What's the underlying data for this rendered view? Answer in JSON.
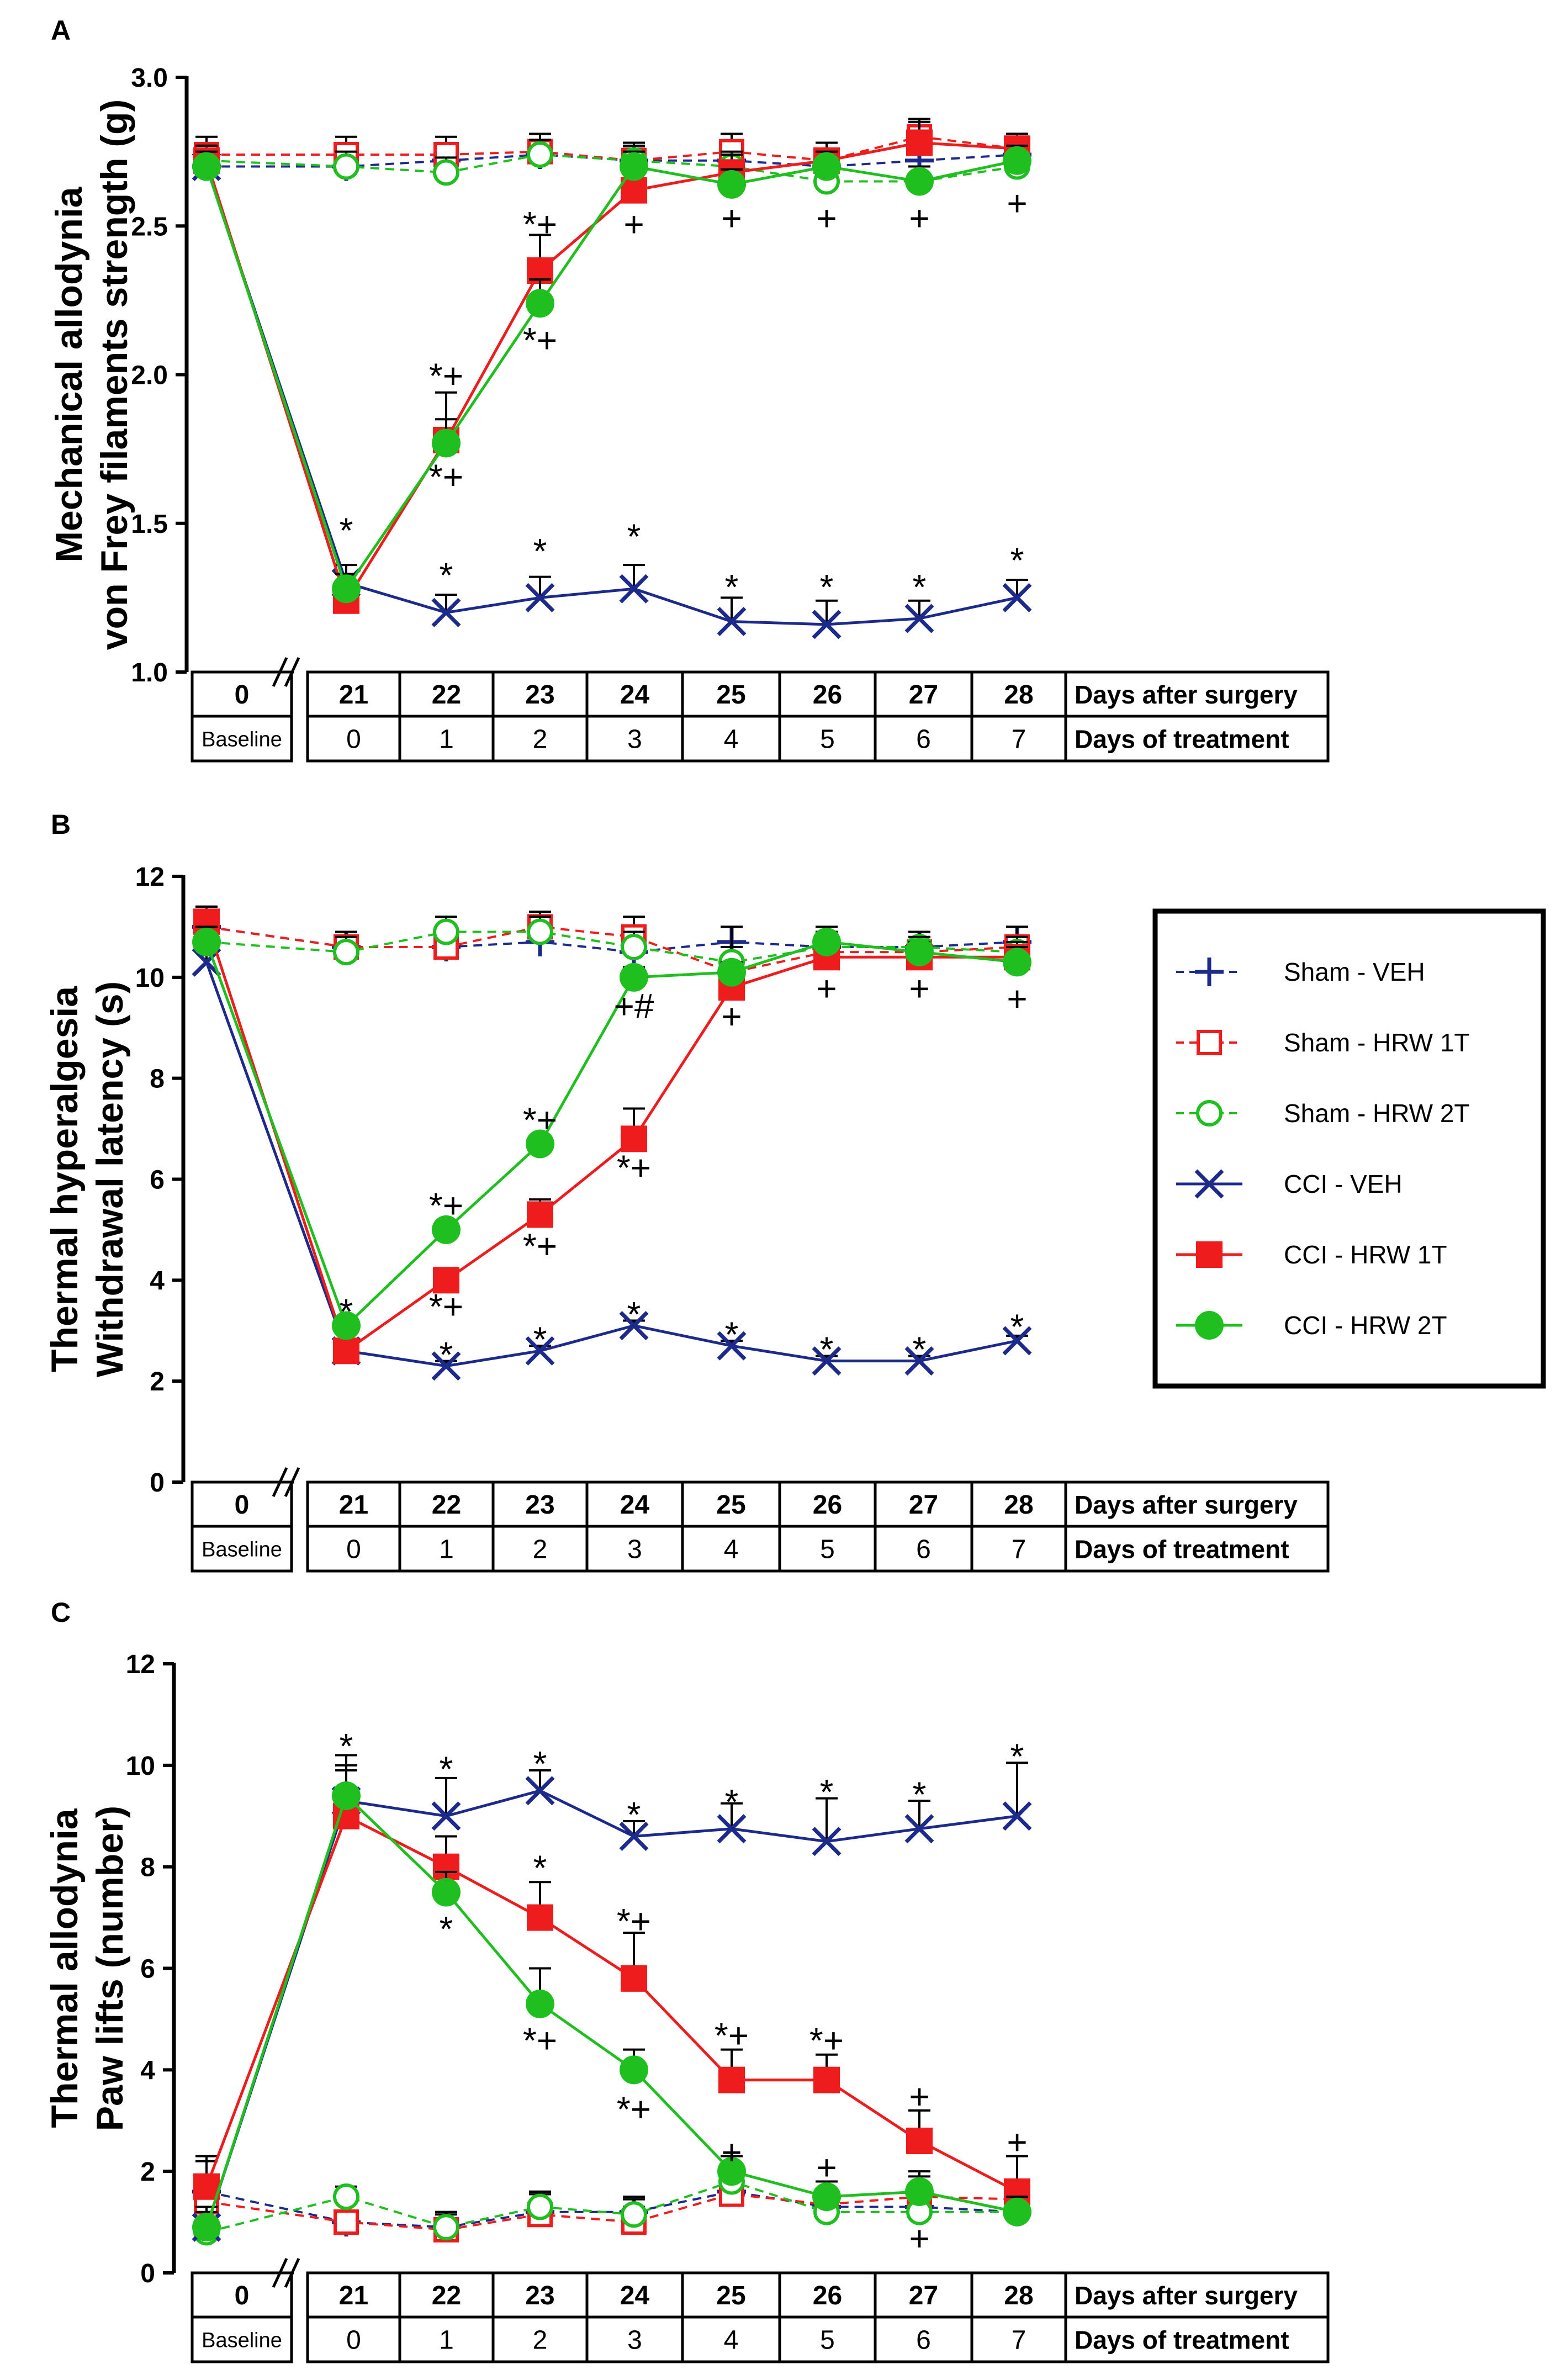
{
  "figure": {
    "panels": [
      "A",
      "B",
      "C"
    ]
  },
  "legend": [
    {
      "label": "Sham - VEH",
      "color": "#1c2a8c",
      "marker": "plus",
      "dashed": true
    },
    {
      "label": "Sham - HRW 1T",
      "color": "#ee1c1c",
      "marker": "open-square",
      "dashed": true
    },
    {
      "label": "Sham - HRW 2T",
      "color": "#1fbf1f",
      "marker": "open-circle",
      "dashed": true
    },
    {
      "label": "CCI - VEH",
      "color": "#1c2a8c",
      "marker": "x",
      "dashed": false
    },
    {
      "label": "CCI - HRW 1T",
      "color": "#ee1c1c",
      "marker": "filled-square",
      "dashed": false
    },
    {
      "label": "CCI - HRW 2T",
      "color": "#1fbf1f",
      "marker": "filled-circle",
      "dashed": false
    }
  ],
  "chart_data": [
    {
      "type": "line",
      "panel_letter": "A",
      "ylabel_line1": "Mechanical allodynia",
      "ylabel_line2": "von Frey filaments strength (g)",
      "ylim": [
        1.0,
        3.0
      ],
      "yticks": [
        "1.0",
        "1.5",
        "2.0",
        "2.5",
        "3.0"
      ],
      "days_after_surgery": [
        "0",
        "21",
        "22",
        "23",
        "24",
        "25",
        "26",
        "27",
        "28"
      ],
      "days_of_treatment": [
        "Baseline",
        "0",
        "1",
        "2",
        "3",
        "4",
        "5",
        "6",
        "7"
      ],
      "row_label_surgery": "Days after surgery",
      "row_label_treatment": "Days of treatment",
      "series": [
        {
          "name": "Sham - VEH",
          "values": [
            2.7,
            2.7,
            2.72,
            2.74,
            2.72,
            2.72,
            2.7,
            2.72,
            2.74
          ],
          "err": [
            0.05,
            0.03,
            0.04,
            0.03,
            0.04,
            0.04,
            0.04,
            0.04,
            0.04
          ]
        },
        {
          "name": "Sham - HRW 1T",
          "values": [
            2.74,
            2.74,
            2.74,
            2.75,
            2.72,
            2.75,
            2.72,
            2.8,
            2.76
          ],
          "err": [
            0.06,
            0.06,
            0.06,
            0.06,
            0.06,
            0.06,
            0.06,
            0.06,
            0.05
          ]
        },
        {
          "name": "Sham - HRW 2T",
          "values": [
            2.72,
            2.7,
            2.68,
            2.74,
            2.72,
            2.7,
            2.65,
            2.65,
            2.7
          ],
          "err": [
            0.05,
            0.05,
            0.05,
            0.05,
            0.05,
            0.05,
            0.05,
            0.05,
            0.05
          ]
        },
        {
          "name": "CCI - VEH",
          "values": [
            2.7,
            1.3,
            1.2,
            1.25,
            1.28,
            1.17,
            1.16,
            1.18,
            1.25
          ],
          "err": [
            0.05,
            0.06,
            0.06,
            0.07,
            0.08,
            0.08,
            0.08,
            0.06,
            0.06
          ]
        },
        {
          "name": "CCI - HRW 1T",
          "values": [
            2.72,
            1.24,
            1.78,
            2.35,
            2.62,
            2.68,
            2.72,
            2.78,
            2.76
          ],
          "err": [
            0.05,
            0.05,
            0.16,
            0.12,
            0.06,
            0.06,
            0.06,
            0.07,
            0.05
          ]
        },
        {
          "name": "CCI - HRW 2T",
          "values": [
            2.7,
            1.28,
            1.77,
            2.24,
            2.7,
            2.64,
            2.7,
            2.65,
            2.72
          ],
          "err": [
            0.05,
            0.05,
            0.08,
            0.08,
            0.05,
            0.05,
            0.05,
            0.05,
            0.05
          ]
        }
      ],
      "annotations": [
        {
          "text": "*",
          "x": "21",
          "y": 1.48
        },
        {
          "text": "*",
          "x": "22",
          "y": 1.33
        },
        {
          "text": "*",
          "x": "23",
          "y": 1.41
        },
        {
          "text": "*",
          "x": "24",
          "y": 1.46
        },
        {
          "text": "*",
          "x": "25",
          "y": 1.29
        },
        {
          "text": "*",
          "x": "26",
          "y": 1.29
        },
        {
          "text": "*",
          "x": "27",
          "y": 1.29
        },
        {
          "text": "*",
          "x": "28",
          "y": 1.38
        },
        {
          "text": "*+",
          "x": "22",
          "y": 2.0
        },
        {
          "text": "*+",
          "x": "22",
          "y": 1.66
        },
        {
          "text": "*+",
          "x": "23",
          "y": 2.51
        },
        {
          "text": "*+",
          "x": "23",
          "y": 2.12
        },
        {
          "text": "+",
          "x": "24",
          "y": 2.51
        },
        {
          "text": "+",
          "x": "25",
          "y": 2.53
        },
        {
          "text": "+",
          "x": "26",
          "y": 2.53
        },
        {
          "text": "+",
          "x": "27",
          "y": 2.53
        },
        {
          "text": "+",
          "x": "28",
          "y": 2.58
        }
      ]
    },
    {
      "type": "line",
      "panel_letter": "B",
      "ylabel_line1": "Thermal hyperalgesia",
      "ylabel_line2": "Withdrawal latency (s)",
      "ylim": [
        0,
        12
      ],
      "yticks": [
        "0",
        "2",
        "4",
        "6",
        "8",
        "10",
        "12"
      ],
      "days_after_surgery": [
        "0",
        "21",
        "22",
        "23",
        "24",
        "25",
        "26",
        "27",
        "28"
      ],
      "days_of_treatment": [
        "Baseline",
        "0",
        "1",
        "2",
        "3",
        "4",
        "5",
        "6",
        "7"
      ],
      "row_label_surgery": "Days after surgery",
      "row_label_treatment": "Days of treatment",
      "series": [
        {
          "name": "Sham - VEH",
          "values": [
            11.0,
            10.6,
            10.6,
            10.7,
            10.5,
            10.7,
            10.6,
            10.6,
            10.7
          ],
          "err": [
            0.4,
            0.3,
            0.3,
            0.3,
            0.3,
            0.3,
            0.3,
            0.3,
            0.3
          ]
        },
        {
          "name": "Sham - HRW 1T",
          "values": [
            11.0,
            10.6,
            10.6,
            11.0,
            10.8,
            10.1,
            10.5,
            10.5,
            10.6
          ],
          "err": [
            0.4,
            0.3,
            0.3,
            0.3,
            0.4,
            0.9,
            0.4,
            0.4,
            0.4
          ]
        },
        {
          "name": "Sham - HRW 2T",
          "values": [
            10.7,
            10.5,
            10.9,
            10.9,
            10.6,
            10.3,
            10.6,
            10.6,
            10.5
          ],
          "err": [
            0.3,
            0.3,
            0.3,
            0.3,
            0.3,
            0.3,
            0.3,
            0.3,
            0.3
          ]
        },
        {
          "name": "CCI - VEH",
          "values": [
            10.3,
            2.6,
            2.3,
            2.6,
            3.1,
            2.7,
            2.4,
            2.4,
            2.8
          ],
          "err": [
            0.3,
            0.1,
            0.1,
            0.1,
            0.1,
            0.1,
            0.1,
            0.1,
            0.1
          ]
        },
        {
          "name": "CCI - HRW 1T",
          "values": [
            11.1,
            2.6,
            4.0,
            5.3,
            6.8,
            9.8,
            10.4,
            10.4,
            10.4
          ],
          "err": [
            0.3,
            0.1,
            0.1,
            0.3,
            0.6,
            0.3,
            0.3,
            0.3,
            0.3
          ]
        },
        {
          "name": "CCI - HRW 2T",
          "values": [
            10.7,
            3.1,
            5.0,
            6.7,
            10.0,
            10.1,
            10.7,
            10.5,
            10.3
          ],
          "err": [
            0.3,
            0.1,
            0.1,
            0.1,
            0.2,
            0.2,
            0.3,
            0.3,
            0.3
          ]
        }
      ],
      "annotations": [
        {
          "text": "*",
          "x": "21",
          "y": 3.4
        },
        {
          "text": "*",
          "x": "22",
          "y": 2.55
        },
        {
          "text": "*",
          "x": "23",
          "y": 2.85
        },
        {
          "text": "*",
          "x": "24",
          "y": 3.35
        },
        {
          "text": "*",
          "x": "25",
          "y": 2.95
        },
        {
          "text": "*",
          "x": "26",
          "y": 2.65
        },
        {
          "text": "*",
          "x": "27",
          "y": 2.65
        },
        {
          "text": "*",
          "x": "28",
          "y": 3.1
        },
        {
          "text": "*+",
          "x": "22",
          "y": 5.5
        },
        {
          "text": "*+",
          "x": "22",
          "y": 3.5
        },
        {
          "text": "*+",
          "x": "23",
          "y": 7.2
        },
        {
          "text": "*+",
          "x": "23",
          "y": 4.7
        },
        {
          "text": "*+",
          "x": "24",
          "y": 6.25
        },
        {
          "text": "+#",
          "x": "24",
          "y": 9.45
        },
        {
          "text": "+",
          "x": "25",
          "y": 9.25
        },
        {
          "text": "+",
          "x": "26",
          "y": 9.8
        },
        {
          "text": "+",
          "x": "27",
          "y": 9.8
        },
        {
          "text": "+",
          "x": "28",
          "y": 9.6
        }
      ]
    },
    {
      "type": "line",
      "panel_letter": "C",
      "ylabel_line1": "Thermal allodynia",
      "ylabel_line2": "Paw lifts (number)",
      "ylim": [
        0,
        12
      ],
      "yticks": [
        "0",
        "2",
        "4",
        "6",
        "8",
        "10",
        "12"
      ],
      "days_after_surgery": [
        "0",
        "21",
        "22",
        "23",
        "24",
        "25",
        "26",
        "27",
        "28"
      ],
      "days_of_treatment": [
        "Baseline",
        "0",
        "1",
        "2",
        "3",
        "4",
        "5",
        "6",
        "7"
      ],
      "row_label_surgery": "Days after surgery",
      "row_label_treatment": "Days of treatment",
      "series": [
        {
          "name": "Sham - VEH",
          "values": [
            1.6,
            1.0,
            0.9,
            1.2,
            1.2,
            1.6,
            1.3,
            1.3,
            1.2
          ],
          "err": [
            0.6,
            0.2,
            0.3,
            0.4,
            0.3,
            0.3,
            0.3,
            0.3,
            0.3
          ]
        },
        {
          "name": "Sham - HRW 1T",
          "values": [
            1.4,
            1.0,
            0.85,
            1.15,
            1.0,
            1.55,
            1.35,
            1.5,
            1.45
          ],
          "err": [
            0.5,
            0.2,
            0.3,
            0.4,
            0.3,
            0.3,
            0.3,
            0.4,
            0.3
          ]
        },
        {
          "name": "Sham - HRW 2T",
          "values": [
            0.8,
            1.5,
            0.9,
            1.3,
            1.15,
            1.8,
            1.2,
            1.2,
            1.2
          ],
          "err": [
            0.3,
            0.2,
            0.3,
            0.3,
            0.3,
            0.3,
            0.3,
            0.3,
            0.3
          ]
        },
        {
          "name": "CCI - VEH",
          "values": [
            0.9,
            9.3,
            9.0,
            9.5,
            8.6,
            8.75,
            8.5,
            8.75,
            9.0
          ],
          "err": [
            0.4,
            0.7,
            0.75,
            0.4,
            0.3,
            0.5,
            0.85,
            0.55,
            1.05
          ]
        },
        {
          "name": "CCI - HRW 1T",
          "values": [
            1.7,
            9.0,
            8.0,
            7.0,
            5.8,
            3.8,
            3.8,
            2.6,
            1.6
          ],
          "err": [
            0.6,
            0.9,
            0.6,
            0.7,
            0.9,
            0.6,
            0.5,
            0.6,
            0.7
          ]
        },
        {
          "name": "CCI - HRW 2T",
          "values": [
            0.9,
            9.4,
            7.5,
            5.3,
            4.0,
            2.0,
            1.5,
            1.6,
            1.2
          ],
          "err": [
            0.3,
            0.8,
            0.4,
            0.7,
            0.4,
            0.3,
            0.3,
            0.4,
            0.3
          ]
        }
      ],
      "annotations": [
        {
          "text": "*",
          "x": "21",
          "y": 10.4
        },
        {
          "text": "*",
          "x": "22",
          "y": 9.95
        },
        {
          "text": "*",
          "x": "23",
          "y": 10.05
        },
        {
          "text": "*",
          "x": "24",
          "y": 9.05
        },
        {
          "text": "*",
          "x": "25",
          "y": 9.3
        },
        {
          "text": "*",
          "x": "26",
          "y": 9.5
        },
        {
          "text": "*",
          "x": "27",
          "y": 9.45
        },
        {
          "text": "*",
          "x": "28",
          "y": 10.2
        },
        {
          "text": "*",
          "x": "22",
          "y": 6.8
        },
        {
          "text": "*",
          "x": "23",
          "y": 8.0
        },
        {
          "text": "*+",
          "x": "23",
          "y": 4.6
        },
        {
          "text": "*+",
          "x": "24",
          "y": 6.95
        },
        {
          "text": "*+",
          "x": "24",
          "y": 3.25
        },
        {
          "text": "*+",
          "x": "25",
          "y": 4.7
        },
        {
          "text": "+",
          "x": "25",
          "y": 2.4
        },
        {
          "text": "*+",
          "x": "26",
          "y": 4.6
        },
        {
          "text": "+",
          "x": "26",
          "y": 2.1
        },
        {
          "text": "+",
          "x": "27",
          "y": 3.5
        },
        {
          "text": "+",
          "x": "27",
          "y": 0.7
        },
        {
          "text": "+",
          "x": "28",
          "y": 2.6
        }
      ]
    }
  ]
}
